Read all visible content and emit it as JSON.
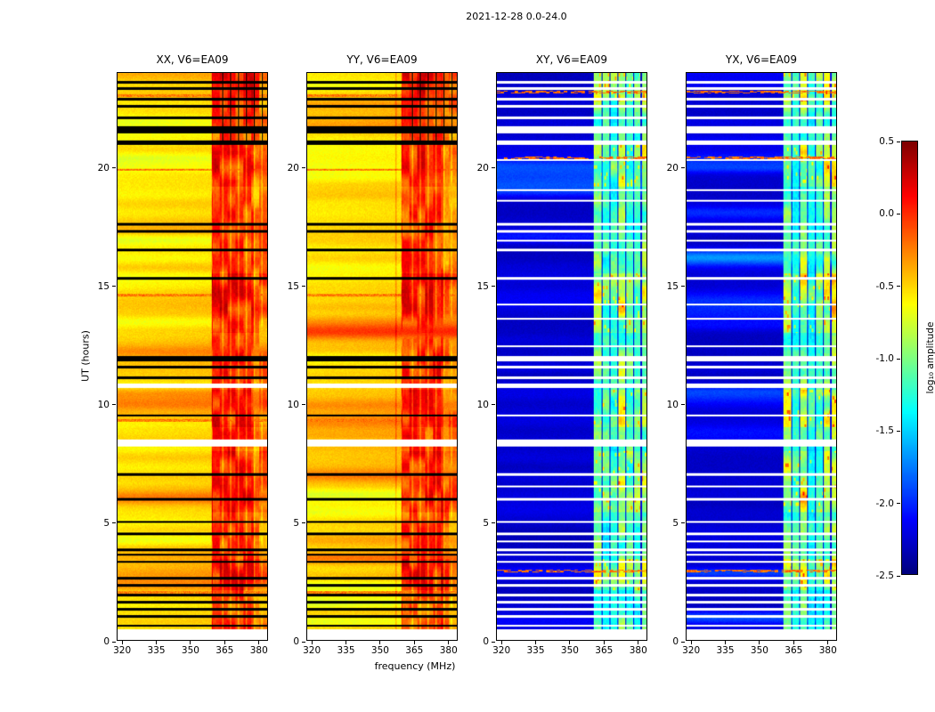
{
  "chart_data": {
    "type": "heatmap",
    "suptitle": "2021-12-28 0.0-24.0",
    "xlabel": "frequency (MHz)",
    "ylabel": "UT (hours)",
    "x_ticks": [
      320,
      335,
      350,
      365,
      380
    ],
    "y_ticks": [
      0,
      5,
      10,
      15,
      20
    ],
    "x_range": [
      318,
      384.4
    ],
    "y_range": [
      0,
      24
    ],
    "grid": false,
    "colormap": "jet",
    "panels": [
      {
        "title": "XX, V6=EA09",
        "kind": "parallel"
      },
      {
        "title": "YY, V6=EA09",
        "kind": "parallel"
      },
      {
        "title": "XY, V6=EA09",
        "kind": "cross"
      },
      {
        "title": "YX, V6=EA09",
        "kind": "cross"
      }
    ],
    "colorbar": {
      "label": "log₁₀ amplitude",
      "range": [
        -2.5,
        0.5
      ],
      "ticks": [
        0.5,
        0,
        -0.5,
        -1,
        -1.5,
        -2,
        -2.5
      ],
      "tick_labels": [
        "0.5",
        "0.0",
        "-0.5",
        "-1.0",
        "-1.5",
        "-2.0",
        "-2.5"
      ]
    },
    "colors": {
      "background": "#ffffff",
      "axes": "#000000",
      "parallel_background_level": -0.62,
      "cross_background_level": -2.3
    },
    "features": {
      "rfi_band_mhz": [
        360,
        384
      ],
      "narrow_rfi_line_mhz": 357.4,
      "band_gap_channels_mhz": [
        364.7,
        368.2,
        371.7,
        375.2,
        378.7,
        382.1
      ],
      "active_windows_ut": [
        [
          2.1,
          3.4
        ],
        [
          5.4,
          8.0
        ],
        [
          9.0,
          10.6
        ],
        [
          13.0,
          15.5
        ],
        [
          19.2,
          21.0
        ],
        [
          22.8,
          24.0
        ]
      ],
      "flagged_rows_ut": [
        [
          0.55,
          0.65
        ],
        [
          0.95,
          1.05
        ],
        [
          1.25,
          1.35
        ],
        [
          1.55,
          1.65
        ],
        [
          1.85,
          1.95
        ],
        [
          2.25,
          2.35
        ],
        [
          2.55,
          2.65
        ],
        [
          3.25,
          3.35
        ],
        [
          3.55,
          3.65
        ],
        [
          3.75,
          3.85
        ],
        [
          4.45,
          4.55
        ],
        [
          4.95,
          5.05
        ],
        [
          5.9,
          6.0
        ],
        [
          6.95,
          7.05
        ],
        [
          9.45,
          9.55
        ],
        [
          11.05,
          11.15
        ],
        [
          11.5,
          11.62
        ],
        [
          11.8,
          12.02
        ],
        [
          15.25,
          15.35
        ],
        [
          16.45,
          16.55
        ],
        [
          17.25,
          17.35
        ],
        [
          17.55,
          17.65
        ],
        [
          20.95,
          21.15
        ],
        [
          21.45,
          21.75
        ],
        [
          22.05,
          22.15
        ],
        [
          22.55,
          22.65
        ],
        [
          22.85,
          22.95
        ],
        [
          23.3,
          23.4
        ],
        [
          23.55,
          23.65
        ]
      ],
      "white_rows_ut": [
        [
          0.0,
          0.45
        ],
        [
          8.2,
          8.5
        ],
        [
          10.65,
          10.85
        ]
      ],
      "cross_extra_white_rows_ut": [
        [
          20.28,
          20.35
        ],
        [
          19.0,
          19.07
        ],
        [
          18.55,
          18.62
        ],
        [
          16.88,
          16.95
        ],
        [
          14.15,
          14.22
        ],
        [
          13.55,
          13.62
        ],
        [
          12.4,
          12.47
        ],
        [
          6.45,
          6.52
        ],
        [
          4.15,
          4.22
        ]
      ],
      "cross_hot_dash_rows_ut": [
        23.2,
        20.4,
        2.9
      ],
      "parallel_hot_rows_ut": [
        23.05,
        19.9,
        14.6,
        9.3,
        2.0
      ]
    }
  }
}
